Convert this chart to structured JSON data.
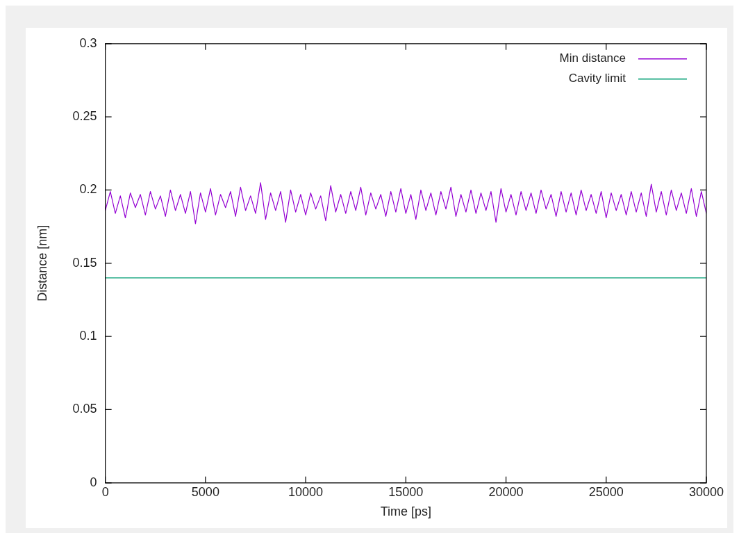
{
  "chart_data": {
    "type": "line",
    "xlabel": "Time [ps]",
    "ylabel": "Distance [nm]",
    "xlim": [
      0,
      30000
    ],
    "xticks": [
      0,
      5000,
      10000,
      15000,
      20000,
      25000,
      30000
    ],
    "ylim": [
      0,
      0.3
    ],
    "yticks": [
      0,
      0.05,
      0.1,
      0.15,
      0.2,
      0.25,
      0.3
    ],
    "grid": false,
    "legend": "top right",
    "marker": "none",
    "line_style": "solid",
    "x": [
      0,
      250,
      500,
      750,
      1000,
      1250,
      1500,
      1750,
      2000,
      2250,
      2500,
      2750,
      3000,
      3250,
      3500,
      3750,
      4000,
      4250,
      4500,
      4750,
      5000,
      5250,
      5500,
      5750,
      6000,
      6250,
      6500,
      6750,
      7000,
      7250,
      7500,
      7750,
      8000,
      8250,
      8500,
      8750,
      9000,
      9250,
      9500,
      9750,
      10000,
      10250,
      10500,
      10750,
      11000,
      11250,
      11500,
      11750,
      12000,
      12250,
      12500,
      12750,
      13000,
      13250,
      13500,
      13750,
      14000,
      14250,
      14500,
      14750,
      15000,
      15250,
      15500,
      15750,
      16000,
      16250,
      16500,
      16750,
      17000,
      17250,
      17500,
      17750,
      18000,
      18250,
      18500,
      18750,
      19000,
      19250,
      19500,
      19750,
      20000,
      20250,
      20500,
      20750,
      21000,
      21250,
      21500,
      21750,
      22000,
      22250,
      22500,
      22750,
      23000,
      23250,
      23500,
      23750,
      24000,
      24250,
      24500,
      24750,
      25000,
      25250,
      25500,
      25750,
      26000,
      26250,
      26500,
      26750,
      27000,
      27250,
      27500,
      27750,
      28000,
      28250,
      28500,
      28750,
      29000,
      29250,
      29500,
      29750,
      30000
    ],
    "series": [
      {
        "name": "Min distance",
        "color": "#9400d3",
        "values": [
          0.186,
          0.199,
          0.184,
          0.196,
          0.181,
          0.198,
          0.188,
          0.197,
          0.183,
          0.199,
          0.187,
          0.196,
          0.182,
          0.2,
          0.186,
          0.197,
          0.184,
          0.199,
          0.177,
          0.198,
          0.185,
          0.201,
          0.183,
          0.197,
          0.188,
          0.199,
          0.182,
          0.202,
          0.186,
          0.196,
          0.184,
          0.205,
          0.18,
          0.198,
          0.186,
          0.199,
          0.178,
          0.2,
          0.185,
          0.197,
          0.183,
          0.198,
          0.187,
          0.196,
          0.179,
          0.203,
          0.185,
          0.197,
          0.184,
          0.199,
          0.186,
          0.202,
          0.183,
          0.198,
          0.187,
          0.197,
          0.182,
          0.199,
          0.185,
          0.201,
          0.184,
          0.197,
          0.18,
          0.2,
          0.186,
          0.198,
          0.183,
          0.199,
          0.187,
          0.202,
          0.182,
          0.197,
          0.185,
          0.2,
          0.184,
          0.198,
          0.186,
          0.199,
          0.178,
          0.201,
          0.185,
          0.197,
          0.183,
          0.199,
          0.186,
          0.198,
          0.184,
          0.2,
          0.187,
          0.197,
          0.182,
          0.199,
          0.185,
          0.198,
          0.183,
          0.2,
          0.186,
          0.197,
          0.184,
          0.199,
          0.181,
          0.198,
          0.186,
          0.197,
          0.183,
          0.199,
          0.185,
          0.198,
          0.182,
          0.204,
          0.185,
          0.199,
          0.183,
          0.2,
          0.186,
          0.198,
          0.184,
          0.201,
          0.182,
          0.199,
          0.184
        ]
      },
      {
        "name": "Cavity limit",
        "color": "#009e73",
        "x": [
          0,
          30000
        ],
        "values": [
          0.14,
          0.14
        ]
      }
    ]
  }
}
